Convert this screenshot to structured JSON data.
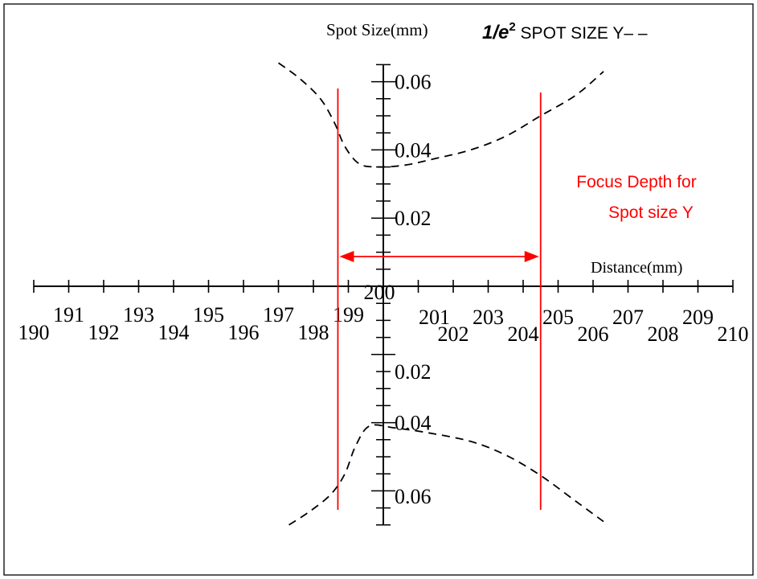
{
  "chart_data": {
    "type": "line",
    "title_parts": {
      "main": "1/e",
      "sup": "2",
      "rest": " SPOT SIZE Y– –"
    },
    "xlabel": "Distance(mm)",
    "ylabel": "Spot Size(mm)",
    "x_ticks": [
      "190",
      "191",
      "192",
      "193",
      "194",
      "195",
      "196",
      "197",
      "198",
      "199",
      "200",
      "201",
      "202",
      "203",
      "204",
      "205",
      "206",
      "207",
      "208",
      "209",
      "210"
    ],
    "y_tick_labels": {
      "upper": [
        "0.02",
        "0.04",
        "0.06"
      ],
      "lower": [
        "0.02",
        "0.04",
        "0.06"
      ]
    },
    "xlim": [
      190,
      210
    ],
    "ylim": [
      -0.07,
      0.07
    ],
    "series": [
      {
        "style": "dashed",
        "color": "#000000",
        "x": [
          197.0,
          197.6,
          198.2,
          198.6,
          198.9,
          199.3,
          199.8,
          200.6,
          201.5,
          202.5,
          203.5,
          204.5,
          205.5,
          206.3
        ],
        "y": [
          0.0655,
          0.061,
          0.055,
          0.048,
          0.041,
          0.036,
          0.035,
          0.0355,
          0.0375,
          0.04,
          0.044,
          0.05,
          0.056,
          0.063
        ]
      },
      {
        "style": "dashed",
        "color": "#000000",
        "x": [
          197.3,
          197.9,
          198.5,
          198.9,
          199.2,
          199.6,
          200.3,
          201.3,
          202.5,
          203.5,
          204.5,
          205.5,
          206.3
        ],
        "y": [
          -0.07,
          -0.066,
          -0.061,
          -0.055,
          -0.047,
          -0.041,
          -0.0415,
          -0.043,
          -0.0455,
          -0.0495,
          -0.0555,
          -0.063,
          -0.069
        ]
      }
    ],
    "annotations": {
      "focus_depth_text": [
        "Focus Depth for",
        "Spot size Y"
      ],
      "focus_depth_x": [
        198.7,
        204.5
      ],
      "color": "#ff0000"
    },
    "grid": false
  }
}
